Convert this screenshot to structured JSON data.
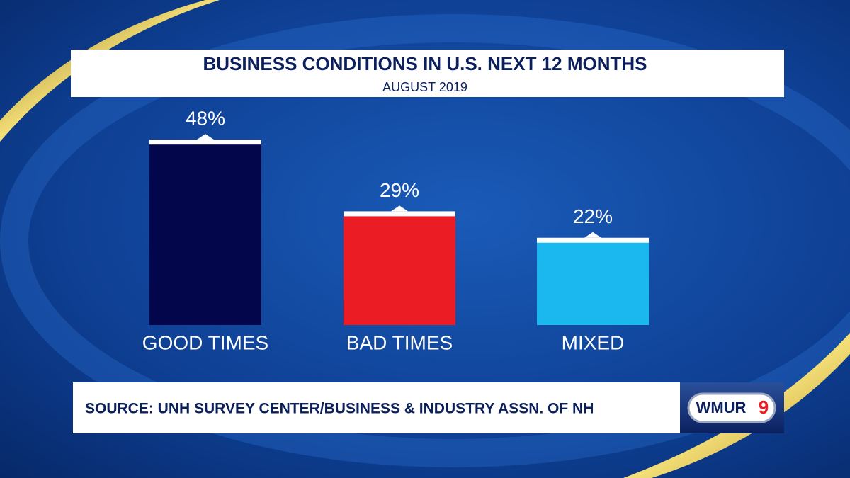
{
  "chart_data": {
    "type": "bar",
    "title": "BUSINESS CONDITIONS IN U.S. NEXT 12 MONTHS",
    "subtitle": "AUGUST 2019",
    "categories": [
      "GOOD TIMES",
      "BAD TIMES",
      "MIXED"
    ],
    "values": [
      48,
      29,
      22
    ],
    "value_labels": [
      "48%",
      "29%",
      "22%"
    ],
    "colors": [
      "#03064a",
      "#ec1c24",
      "#1bb8ef"
    ],
    "source": "SOURCE: UNH SURVEY CENTER/BUSINESS & INDUSTRY ASSN. OF NH"
  },
  "branding": {
    "logo": "WMUR",
    "channel": "9"
  }
}
